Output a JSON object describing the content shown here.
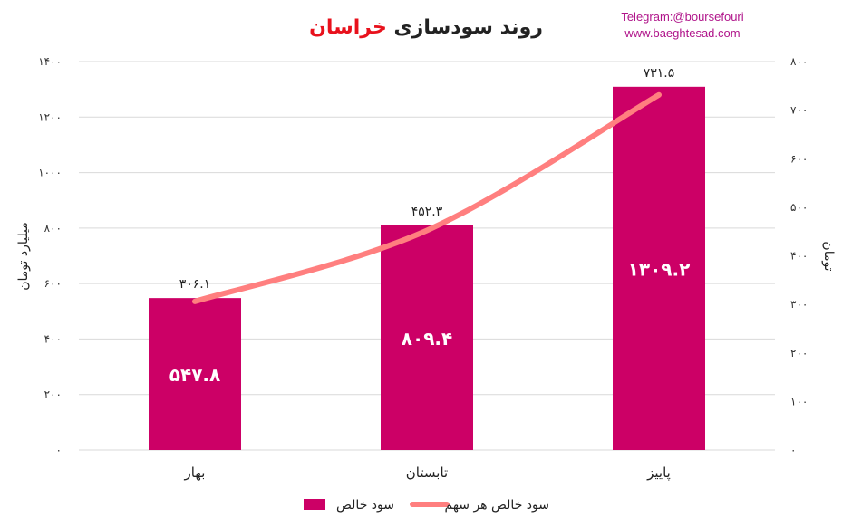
{
  "title": {
    "main": "روند سودسازی",
    "highlight": "خراسان",
    "main_color": "#222222",
    "highlight_color": "#e8111c"
  },
  "watermark": {
    "line1": "Telegram:@boursefouri",
    "line2": "www.baeghtesad.com",
    "color": "#b0148a"
  },
  "chart_data": {
    "type": "bar",
    "categories": [
      "بهار",
      "تابستان",
      "پاییز"
    ],
    "series": [
      {
        "name": "سود خالص",
        "type": "bar",
        "axis": "left",
        "values": [
          547.8,
          809.4,
          1309.2
        ],
        "labels": [
          "۵۴۷.۸",
          "۸۰۹.۴",
          "۱۳۰۹.۲"
        ],
        "color": "#cc0066"
      },
      {
        "name": "سود خالص هر سهم",
        "type": "line",
        "axis": "right",
        "values": [
          306.1,
          452.3,
          731.5
        ],
        "labels": [
          "۳۰۶.۱",
          "۴۵۲.۳",
          "۷۳۱.۵"
        ],
        "color": "#ff7f7f"
      }
    ],
    "y_left": {
      "label": "میلیارد تومان",
      "range": [
        0,
        1400
      ],
      "ticks": [
        "۰",
        "۲۰۰",
        "۴۰۰",
        "۶۰۰",
        "۸۰۰",
        "۱۰۰۰",
        "۱۲۰۰",
        "۱۴۰۰"
      ]
    },
    "y_right": {
      "label": "تومان",
      "range": [
        0,
        800
      ],
      "ticks": [
        "۰",
        "۱۰۰",
        "۲۰۰",
        "۳۰۰",
        "۴۰۰",
        "۵۰۰",
        "۶۰۰",
        "۷۰۰",
        "۸۰۰"
      ]
    },
    "grid": true,
    "legend_position": "bottom"
  }
}
